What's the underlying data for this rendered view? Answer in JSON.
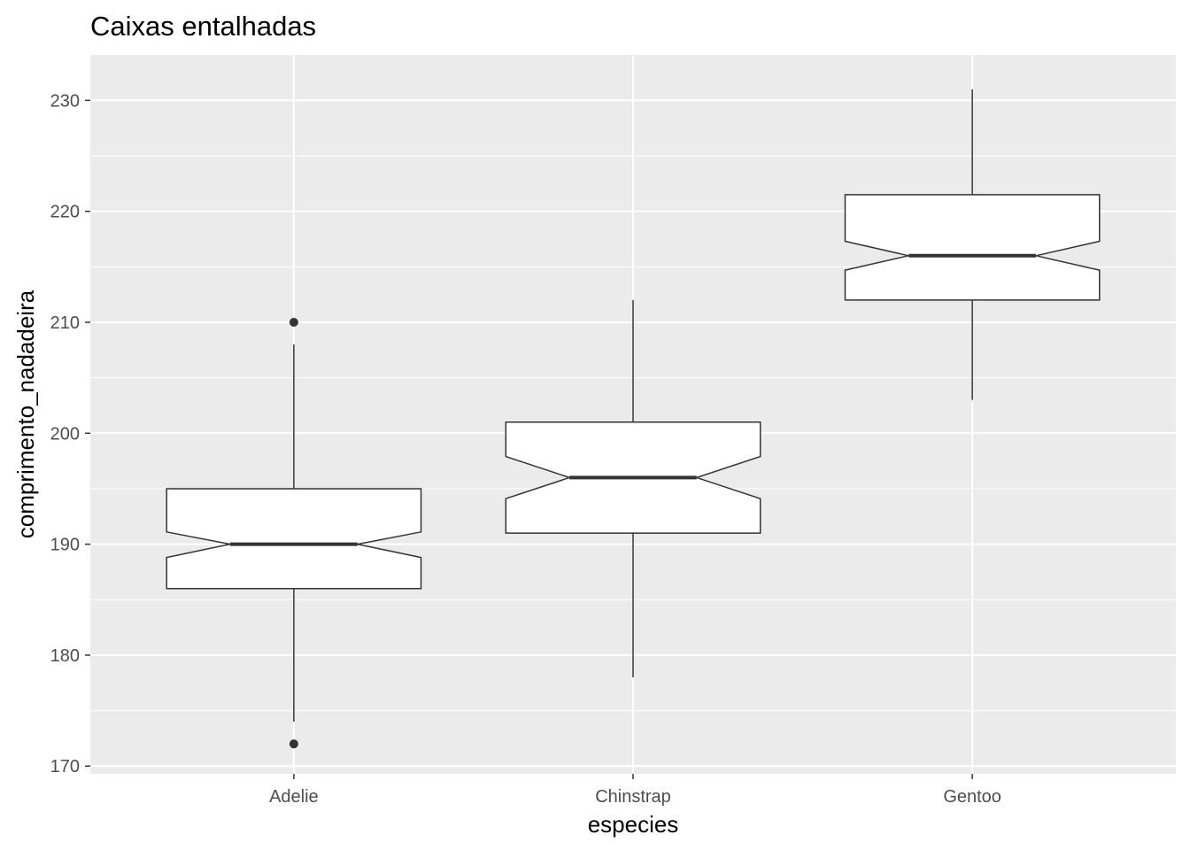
{
  "chart_data": {
    "type": "boxplot",
    "notched": true,
    "title": "Caixas entalhadas",
    "xlabel": "especies",
    "ylabel": "comprimento_nadadeira",
    "ylim": [
      169.3,
      234.1
    ],
    "yticks": [
      170,
      180,
      190,
      200,
      210,
      220,
      230
    ],
    "categories": [
      "Adelie",
      "Chinstrap",
      "Gentoo"
    ],
    "boxes": [
      {
        "name": "Adelie",
        "whisker_low": 174,
        "q1": 186,
        "median": 190,
        "q3": 195,
        "whisker_high": 208,
        "notch_low": 188.8,
        "notch_high": 191.1,
        "outliers": [
          210,
          172
        ]
      },
      {
        "name": "Chinstrap",
        "whisker_low": 178,
        "q1": 191,
        "median": 196,
        "q3": 201,
        "whisker_high": 212,
        "notch_low": 194.1,
        "notch_high": 197.9,
        "outliers": []
      },
      {
        "name": "Gentoo",
        "whisker_low": 203,
        "q1": 212,
        "median": 216,
        "q3": 221.5,
        "whisker_high": 231,
        "notch_low": 214.7,
        "notch_high": 217.3,
        "outliers": []
      }
    ],
    "colors": {
      "panel": "#ebebeb",
      "grid": "#ffffff",
      "box_fill": "#ffffff",
      "box_line": "#333333",
      "tick_text": "#4d4d4d"
    }
  }
}
